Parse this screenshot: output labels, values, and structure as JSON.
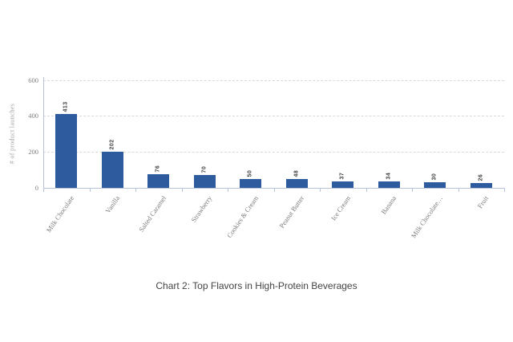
{
  "chart_data": {
    "type": "bar",
    "title": "Chart 2: Top Flavors in High-Protein Beverages",
    "ylabel": "# of product launches",
    "xlabel": "",
    "categories": [
      "Milk Chocolate",
      "Vanilla",
      "Salted Caramel",
      "Strawberry",
      "Cookies & Cream",
      "Peanut Butter",
      "Ice Cream",
      "Banana",
      "Milk Chocolate…",
      "Fruit"
    ],
    "values": [
      413,
      202,
      76,
      70,
      50,
      48,
      37,
      34,
      30,
      26
    ],
    "ylim": [
      0,
      600
    ],
    "yticks": [
      0,
      200,
      400,
      600
    ],
    "grid": "horizontal-dashed",
    "legend_position": "none",
    "bar_color": "#2e5b9e",
    "value_labels": "rotated-90-above-bars",
    "category_label_rotation_deg": -55
  }
}
